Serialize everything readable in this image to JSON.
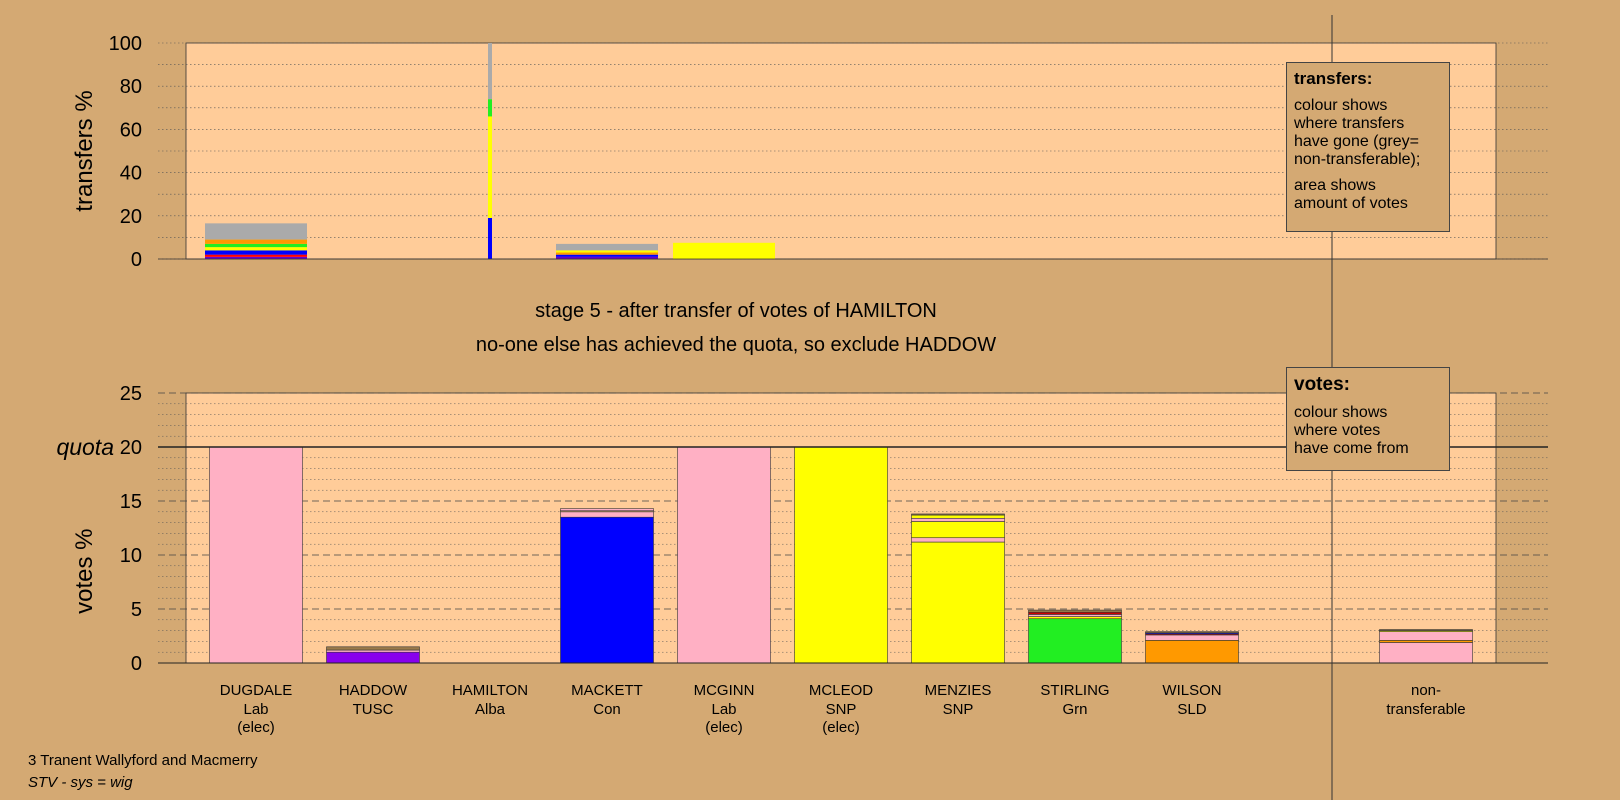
{
  "chart_data": [
    {
      "type": "bar",
      "ylabel": "transfers %",
      "ylim": [
        0,
        100
      ],
      "yticks": [
        0,
        20,
        40,
        60,
        80,
        100
      ],
      "grid": true,
      "categories": [
        "DUGDALE",
        "HADDOW",
        "HAMILTON",
        "MACKETT",
        "MCGINN",
        "MCLEOD",
        "MENZIES",
        "STIRLING",
        "WILSON",
        "non-transferable"
      ],
      "transferred_from": "HAMILTON",
      "source_bar_stack": [
        {
          "to": "MACKETT",
          "color": "#0000ff",
          "value": 19
        },
        {
          "to": "MCLEOD",
          "color": "#ffff00",
          "value": 37
        },
        {
          "to": "MENZIES",
          "color": "#ffff00",
          "value": 10
        },
        {
          "to": "STIRLING",
          "color": "#22ee22",
          "value": 8
        },
        {
          "to": "non-transferable",
          "color": "#aaaaaa",
          "value": 26
        }
      ],
      "received": [
        {
          "category": "DUGDALE",
          "segments": [
            {
              "color": "#6600cc",
              "value": 1
            },
            {
              "color": "#ff0000",
              "value": 1
            },
            {
              "color": "#0000ff",
              "value": 2
            },
            {
              "color": "#ffff00",
              "value": 1.5
            },
            {
              "color": "#22ee22",
              "value": 1.5
            },
            {
              "color": "#ff9900",
              "value": 2
            },
            {
              "color": "#aaaaaa",
              "value": 7.5
            }
          ]
        },
        {
          "category": "MACKETT",
          "segments": [
            {
              "color": "#6600cc",
              "value": 1
            },
            {
              "color": "#0000ff",
              "value": 1
            },
            {
              "color": "#ff9900",
              "value": 1
            },
            {
              "color": "#ffff00",
              "value": 1
            },
            {
              "color": "#aaaaaa",
              "value": 3
            }
          ]
        },
        {
          "category": "MCGINN",
          "segments": [
            {
              "color": "#ffff00",
              "value": 7.5
            }
          ]
        }
      ],
      "legend": {
        "title": "transfers:",
        "line1": "colour shows\nwhere transfers\nhave gone (grey=\nnon-transferable);",
        "line2": "area shows\namount of votes"
      }
    },
    {
      "type": "bar",
      "stacked": true,
      "ylabel": "votes %",
      "ylim": [
        0,
        25
      ],
      "yticks": [
        0,
        5,
        10,
        15,
        20,
        25
      ],
      "quota": 20,
      "quota_label": "quota",
      "grid": true,
      "categories": [
        {
          "name": "DUGDALE",
          "party": "Lab",
          "status": "(elec)"
        },
        {
          "name": "HADDOW",
          "party": "TUSC",
          "status": ""
        },
        {
          "name": "HAMILTON",
          "party": "Alba",
          "status": ""
        },
        {
          "name": "MACKETT",
          "party": "Con",
          "status": ""
        },
        {
          "name": "MCGINN",
          "party": "Lab",
          "status": "(elec)"
        },
        {
          "name": "MCLEOD",
          "party": "SNP",
          "status": "(elec)"
        },
        {
          "name": "MENZIES",
          "party": "SNP",
          "status": ""
        },
        {
          "name": "STIRLING",
          "party": "Grn",
          "status": ""
        },
        {
          "name": "WILSON",
          "party": "SLD",
          "status": ""
        },
        {
          "name": "non-",
          "party": "transferable",
          "status": ""
        }
      ],
      "stacks": [
        [
          {
            "color": "#ffb0c4",
            "value": 20
          }
        ],
        [
          {
            "color": "#8800ee",
            "value": 1.0
          },
          {
            "color": "#ffb0c4",
            "value": 0.2
          },
          {
            "color": "#9a7a4a",
            "value": 0.3
          }
        ],
        [],
        [
          {
            "color": "#0000ff",
            "value": 13.5
          },
          {
            "color": "#ffb0c4",
            "value": 0.5
          },
          {
            "color": "#d4a973",
            "value": 0.1
          },
          {
            "color": "#ffb0c4",
            "value": 0.2
          }
        ],
        [
          {
            "color": "#ffb0c4",
            "value": 20
          }
        ],
        [
          {
            "color": "#ffff00",
            "value": 20
          }
        ],
        [
          {
            "color": "#ffff00",
            "value": 11.2
          },
          {
            "color": "#ffb0c4",
            "value": 0.4
          },
          {
            "color": "#ffff00",
            "value": 1.5
          },
          {
            "color": "#ffb0c4",
            "value": 0.3
          },
          {
            "color": "#ffff00",
            "value": 0.3
          },
          {
            "color": "#9a7a4a",
            "value": 0.1
          }
        ],
        [
          {
            "color": "#22ee22",
            "value": 4.1
          },
          {
            "color": "#ffff00",
            "value": 0.2
          },
          {
            "color": "#ffb0c4",
            "value": 0.2
          },
          {
            "color": "#cc0000",
            "value": 0.2
          },
          {
            "color": "#9a7a4a",
            "value": 0.2
          }
        ],
        [
          {
            "color": "#ff9900",
            "value": 2.1
          },
          {
            "color": "#ffb0c4",
            "value": 0.5
          },
          {
            "color": "#cc0000",
            "value": 0.1
          },
          {
            "color": "#0000ff",
            "value": 0.1
          },
          {
            "color": "#9a7a4a",
            "value": 0.1
          }
        ],
        [
          {
            "color": "#ffb0c4",
            "value": 1.9
          },
          {
            "color": "#ff9900",
            "value": 0.2
          },
          {
            "color": "#ffb0c4",
            "value": 0.8
          },
          {
            "color": "#ffff00",
            "value": 0.1
          },
          {
            "color": "#9a7a4a",
            "value": 0.1
          }
        ]
      ],
      "legend": {
        "title": "votes:",
        "line1": "colour shows\nwhere votes\nhave come from"
      }
    }
  ],
  "stage_title": "stage 5 - after transfer of votes of HAMILTON",
  "stage_subtitle": "no-one else has achieved the quota, so exclude HADDOW",
  "ward_name": "3 Tranent Wallyford and Macmerry",
  "system_note": "STV - sys = wig",
  "colors": {
    "background": "#d4a973",
    "plot_area": "#ffcc99"
  }
}
